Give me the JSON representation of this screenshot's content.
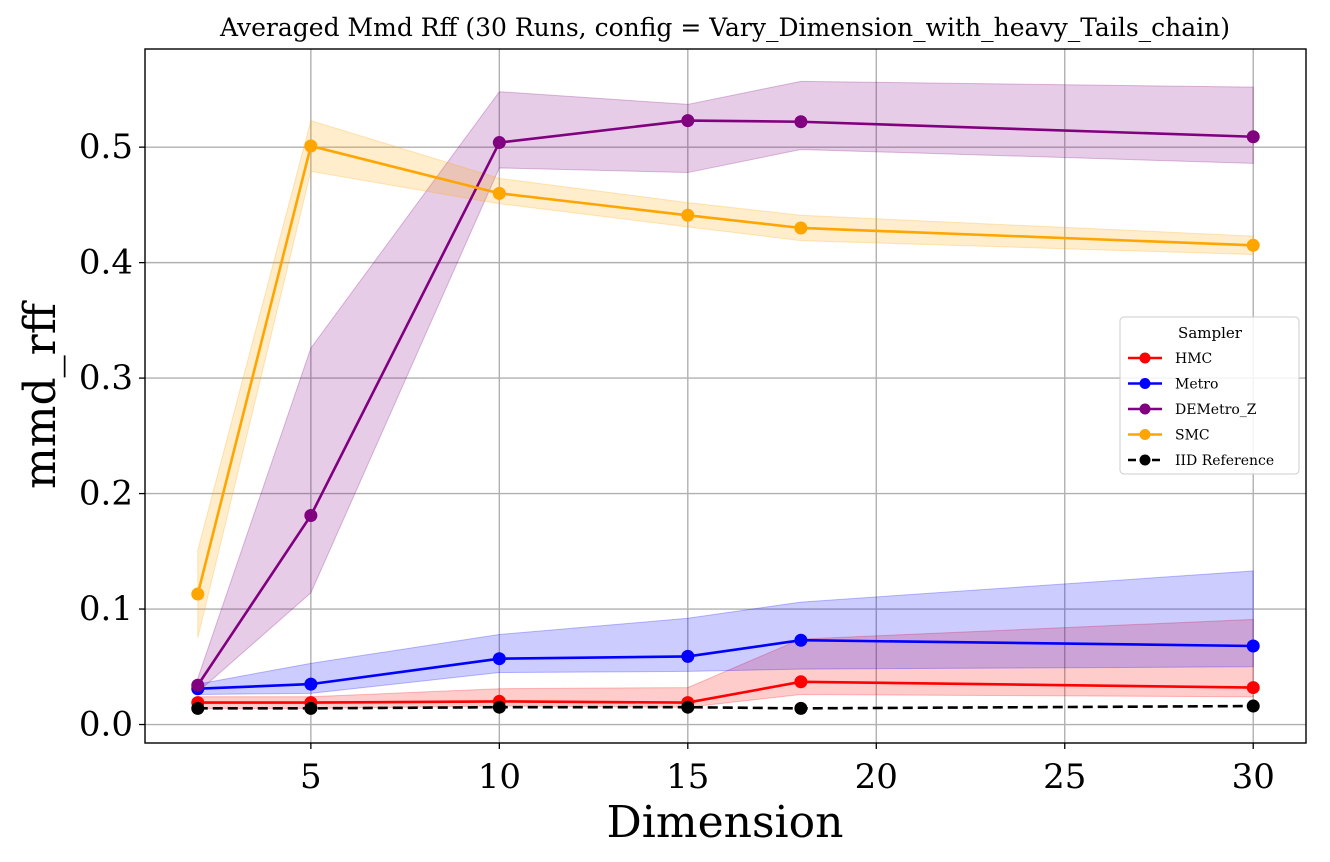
{
  "chart_data": {
    "type": "line",
    "title": "Averaged Mmd Rff (30 Runs, config = Vary_Dimension_with_heavy_Tails_chain)",
    "xlabel": "Dimension",
    "ylabel": "mmd_rff",
    "x": [
      2,
      5,
      10,
      15,
      18,
      30
    ],
    "xlim": [
      0.6,
      31.4
    ],
    "ylim": [
      -0.016,
      0.585
    ],
    "xticks": [
      5,
      10,
      15,
      20,
      25,
      30
    ],
    "yticks": [
      0.0,
      0.1,
      0.2,
      0.3,
      0.4,
      0.5
    ],
    "xtick_labels": [
      "5",
      "10",
      "15",
      "20",
      "25",
      "30"
    ],
    "ytick_labels": [
      "0.0",
      "0.1",
      "0.2",
      "0.3",
      "0.4",
      "0.5"
    ],
    "grid": true,
    "legend": {
      "title": "Sampler",
      "position": "center-right"
    },
    "series": [
      {
        "name": "HMC",
        "color": "#ff0000",
        "dashed": false,
        "values": [
          0.019,
          0.019,
          0.02,
          0.019,
          0.037,
          0.032
        ],
        "lower": [
          0.014,
          0.014,
          0.016,
          0.015,
          0.026,
          0.024
        ],
        "upper": [
          0.024,
          0.024,
          0.031,
          0.032,
          0.074,
          0.091
        ]
      },
      {
        "name": "Metro",
        "color": "#0000ff",
        "dashed": false,
        "values": [
          0.031,
          0.035,
          0.057,
          0.059,
          0.073,
          0.068
        ],
        "lower": [
          0.026,
          0.027,
          0.045,
          0.046,
          0.048,
          0.05
        ],
        "upper": [
          0.035,
          0.053,
          0.078,
          0.092,
          0.106,
          0.133
        ]
      },
      {
        "name": "DEMetro_Z",
        "color": "#800080",
        "dashed": false,
        "values": [
          0.034,
          0.181,
          0.504,
          0.523,
          0.522,
          0.509
        ],
        "lower": [
          0.028,
          0.114,
          0.482,
          0.478,
          0.498,
          0.486
        ],
        "upper": [
          0.04,
          0.326,
          0.548,
          0.537,
          0.557,
          0.552
        ]
      },
      {
        "name": "SMC",
        "color": "#ffa500",
        "dashed": false,
        "values": [
          0.113,
          0.501,
          0.46,
          0.441,
          0.43,
          0.415
        ],
        "lower": [
          0.075,
          0.479,
          0.451,
          0.431,
          0.419,
          0.407
        ],
        "upper": [
          0.151,
          0.523,
          0.473,
          0.452,
          0.441,
          0.423
        ]
      },
      {
        "name": "IID Reference",
        "color": "#000000",
        "dashed": true,
        "values": [
          0.014,
          0.014,
          0.015,
          0.015,
          0.014,
          0.016
        ]
      }
    ]
  }
}
